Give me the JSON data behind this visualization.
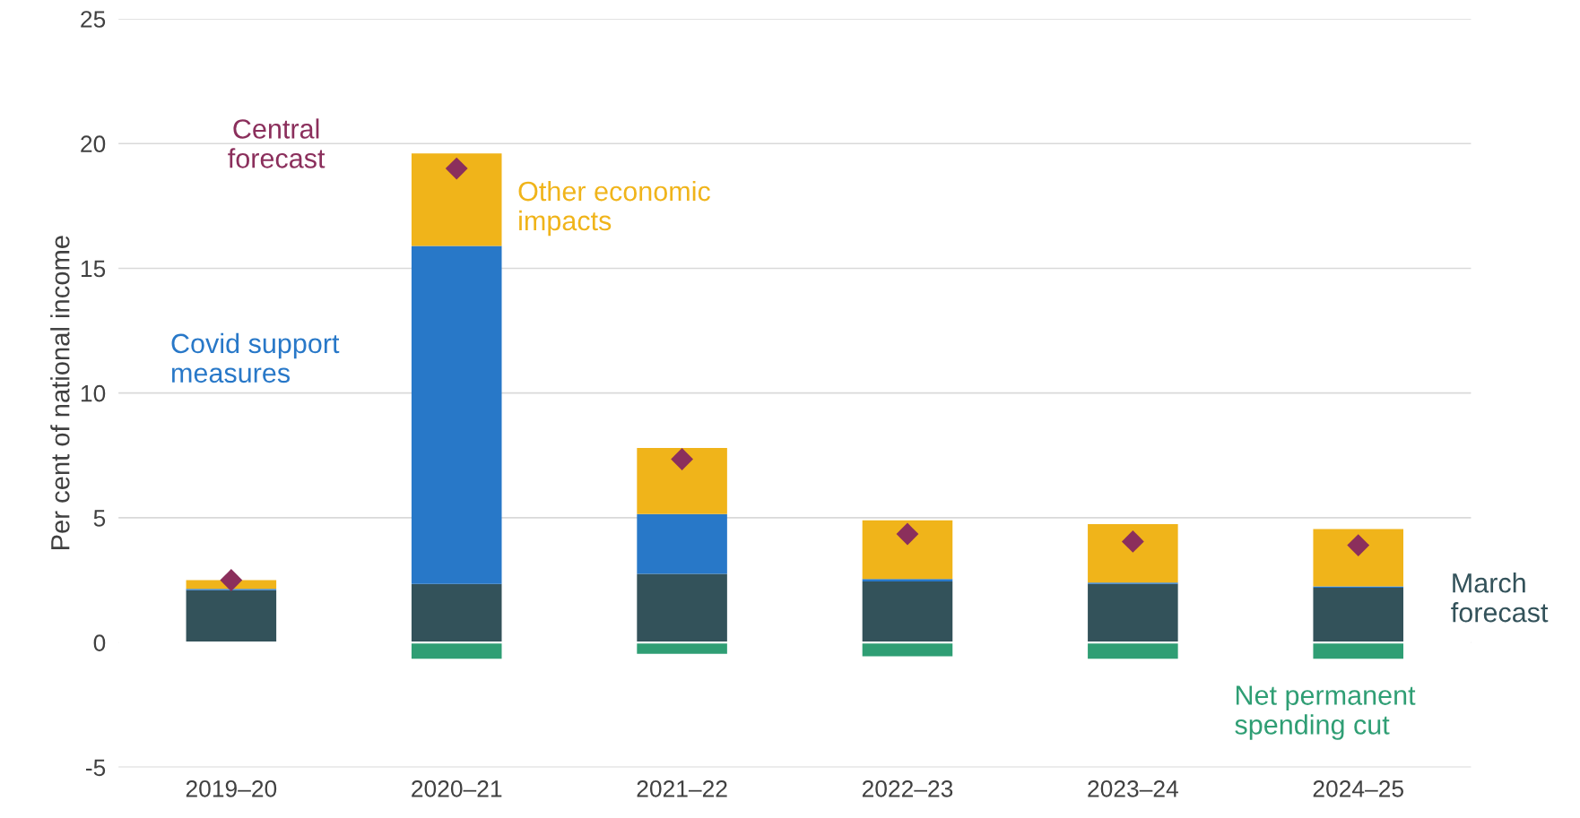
{
  "chart_data": {
    "type": "bar",
    "stacked": true,
    "ylabel": "Per cent of national income",
    "categories": [
      "2019–20",
      "2020–21",
      "2021–22",
      "2022–23",
      "2023–24",
      "2024–25"
    ],
    "series": [
      {
        "name": "March forecast",
        "color": "#33525a",
        "values": [
          2.1,
          2.35,
          2.75,
          2.45,
          2.35,
          2.2
        ]
      },
      {
        "name": "Covid support measures",
        "color": "#2878c8",
        "values": [
          0.05,
          13.55,
          2.4,
          0.1,
          0.05,
          0.05
        ]
      },
      {
        "name": "Other economic impacts",
        "color": "#f0b41a",
        "values": [
          0.35,
          3.7,
          2.65,
          2.35,
          2.35,
          2.3
        ]
      },
      {
        "name": "Net permanent spending cut",
        "color": "#2f9e74",
        "values": [
          0,
          -0.65,
          -0.45,
          -0.55,
          -0.65,
          -0.65
        ]
      },
      {
        "name": "Central forecast",
        "color": "#8b2f5c",
        "type": "scatter",
        "marker": "diamond",
        "values": [
          2.5,
          19.0,
          7.35,
          4.35,
          4.05,
          3.9
        ]
      }
    ],
    "ylim": [
      -5,
      25
    ],
    "yticks": [
      {
        "value": -5,
        "label": "-5"
      },
      0,
      5,
      10,
      15,
      20,
      25
    ],
    "grid": "y",
    "legend": false
  }
}
